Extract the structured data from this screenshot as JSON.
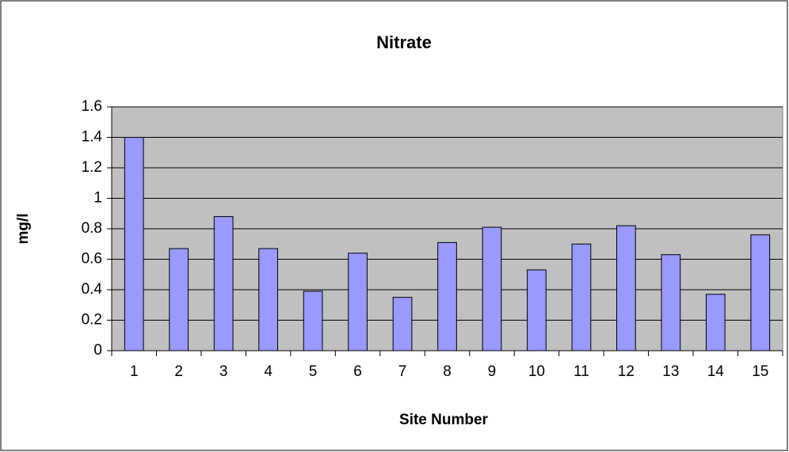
{
  "chart_data": {
    "type": "bar",
    "title": "Nitrate",
    "x_label": "Site Number",
    "y_label": "mg/l",
    "categories": [
      "1",
      "2",
      "3",
      "4",
      "5",
      "6",
      "7",
      "8",
      "9",
      "10",
      "11",
      "12",
      "13",
      "14",
      "15"
    ],
    "values": [
      1.4,
      0.67,
      0.88,
      0.67,
      0.39,
      0.64,
      0.35,
      0.71,
      0.81,
      0.53,
      0.7,
      0.82,
      0.63,
      0.37,
      0.76
    ],
    "color": "#9999ff",
    "plot_background": "#c0c0c0",
    "ylim": [
      0,
      1.6
    ],
    "yticks": [
      0,
      0.2,
      0.4,
      0.6,
      0.8,
      1,
      1.2,
      1.4,
      1.6
    ],
    "grid": true
  }
}
